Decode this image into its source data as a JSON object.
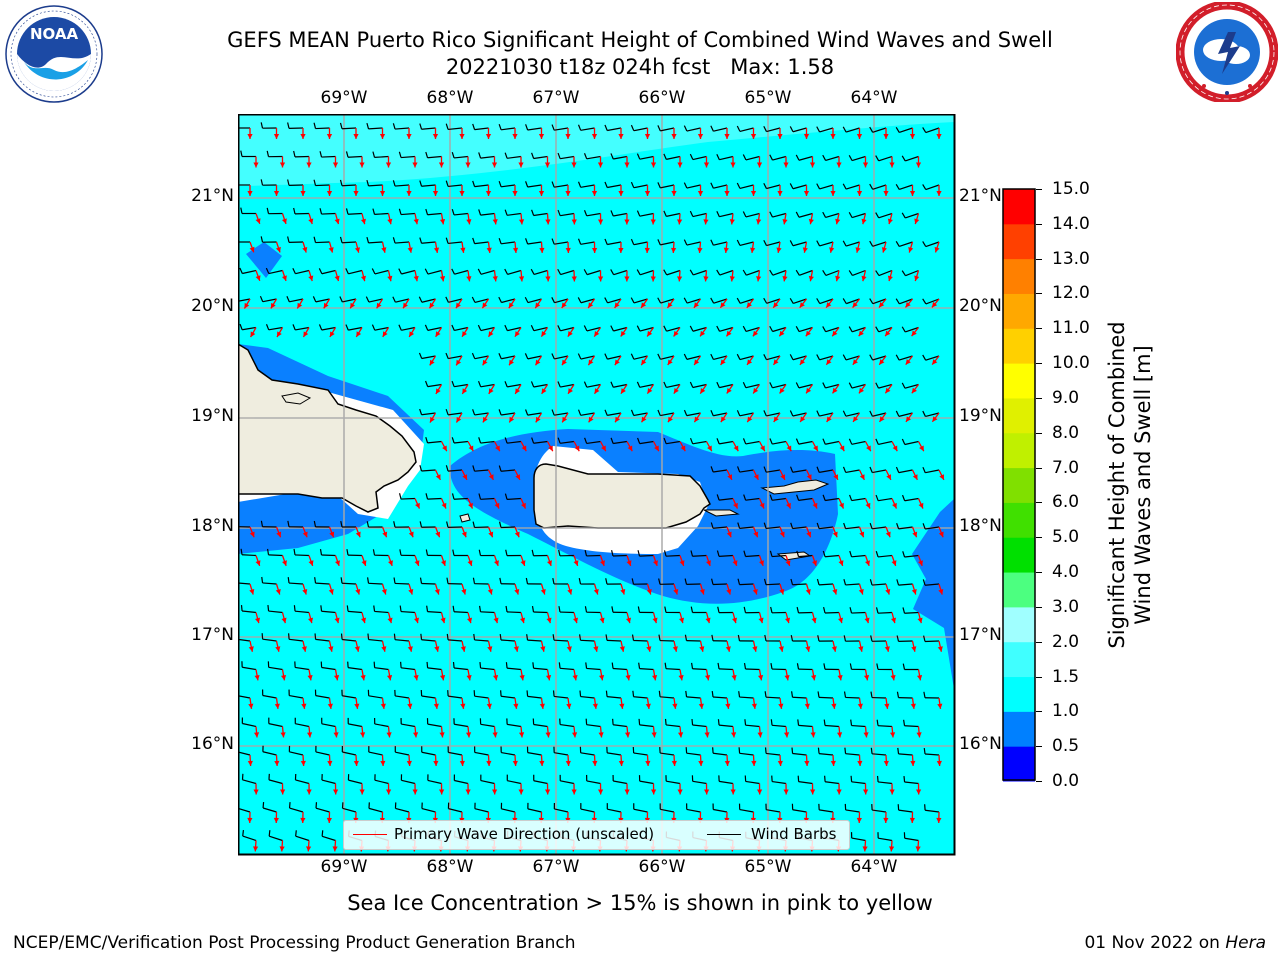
{
  "title": {
    "line1": "GEFS MEAN Puerto Rico Significant Height of Combined Wind Waves and Swell",
    "line2": "20221030 t18z 024h fcst   Max: 1.58"
  },
  "logos": {
    "noaa": {
      "text": "NOAA",
      "ring_text": "NATIONAL OCEANIC AND ATMOSPHERIC ADMINISTRATION · U.S. DEPARTMENT OF COMMERCE"
    },
    "nws": {
      "ring_text": "NATIONAL WEATHER SERVICE"
    }
  },
  "map": {
    "lon_labels": [
      "69°W",
      "68°W",
      "67°W",
      "66°W",
      "65°W",
      "64°W"
    ],
    "lat_labels": [
      "21°N",
      "20°N",
      "19°N",
      "18°N",
      "17°N",
      "16°N"
    ],
    "background_color": "#00ffff",
    "land_color": "#efeddf",
    "legend": {
      "wave_label": "Primary Wave Direction (unscaled)",
      "wave_color": "#ff0000",
      "barb_label": "Wind Barbs",
      "barb_color": "#000000"
    }
  },
  "colorbar": {
    "label_line1": "Significant Height of Combined",
    "label_line2": "Wind Waves and Swell [m]",
    "ticks": [
      "0.0",
      "0.5",
      "1.0",
      "1.5",
      "2.0",
      "3.0",
      "4.0",
      "5.0",
      "6.0",
      "7.0",
      "8.0",
      "9.0",
      "10.0",
      "11.0",
      "12.0",
      "13.0",
      "14.0",
      "15.0"
    ],
    "colors": [
      "#0000ff",
      "#0080ff",
      "#00ffff",
      "#40ffff",
      "#a0ffff",
      "#4cff80",
      "#00e000",
      "#40e000",
      "#80e000",
      "#c0f000",
      "#e0f000",
      "#ffff00",
      "#ffd000",
      "#ffa800",
      "#ff8000",
      "#ff4000",
      "#ff0000"
    ]
  },
  "caption": "Sea Ice Concentration > 15% is shown in pink to yellow",
  "footer": {
    "left": "NCEP/EMC/Verification Post Processing Product Generation Branch",
    "right_date": "01 Nov 2022 on ",
    "right_host": "Hera"
  }
}
